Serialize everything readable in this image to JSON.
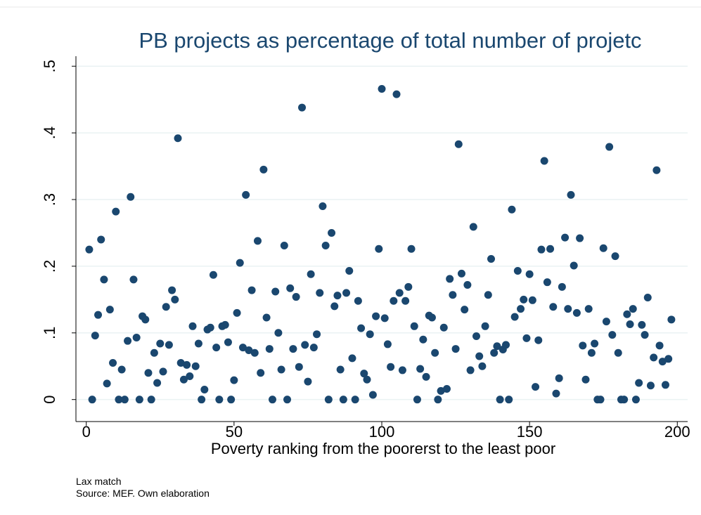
{
  "chart_data": {
    "type": "scatter",
    "title": "PB projects as percentage of total number of projetc",
    "x_label": "Poverty ranking from the poorerst to the least poor",
    "notes": [
      "Lax match",
      "Source: MEF. Own elaboration"
    ],
    "color": "#1a476f",
    "grid": true,
    "xlim": [
      -3.5,
      203.5
    ],
    "xticks": [
      0,
      50,
      100,
      150,
      200
    ],
    "ylim": [
      -0.033,
      0.515
    ],
    "yticks": [
      0,
      {
        "value": 0.1,
        "label": ".1"
      },
      {
        "value": 0.2,
        "label": ".2"
      },
      {
        "value": 0.3,
        "label": ".3"
      },
      {
        "value": 0.4,
        "label": ".4"
      },
      {
        "value": 0.5,
        "label": ".5"
      }
    ],
    "x": [
      1,
      2,
      3,
      4,
      5,
      6,
      7,
      8,
      9,
      10,
      11,
      12,
      13,
      14,
      15,
      16,
      17,
      18,
      19,
      20,
      21,
      22,
      23,
      24,
      25,
      26,
      27,
      28,
      29,
      30,
      31,
      32,
      33,
      34,
      35,
      36,
      37,
      38,
      39,
      40,
      41,
      42,
      43,
      44,
      45,
      46,
      47,
      48,
      49,
      50,
      51,
      52,
      53,
      54,
      55,
      56,
      57,
      58,
      59,
      60,
      61,
      62,
      63,
      64,
      65,
      66,
      67,
      68,
      69,
      70,
      71,
      72,
      73,
      74,
      75,
      76,
      77,
      78,
      79,
      80,
      81,
      82,
      83,
      84,
      85,
      86,
      87,
      88,
      89,
      90,
      91,
      92,
      93,
      94,
      95,
      96,
      97,
      98,
      99,
      100,
      101,
      102,
      103,
      104,
      105,
      106,
      107,
      108,
      109,
      110,
      111,
      112,
      113,
      114,
      115,
      116,
      117,
      118,
      119,
      120,
      121,
      122,
      123,
      124,
      125,
      126,
      127,
      128,
      129,
      130,
      131,
      132,
      133,
      134,
      135,
      136,
      137,
      138,
      139,
      140,
      141,
      142,
      143,
      144,
      145,
      146,
      147,
      148,
      149,
      150,
      151,
      152,
      153,
      154,
      155,
      156,
      157,
      158,
      159,
      160,
      161,
      162,
      163,
      164,
      165,
      166,
      167,
      168,
      169,
      170,
      171,
      172,
      173,
      174,
      175,
      176,
      177,
      178,
      179,
      180,
      181,
      182,
      183,
      184,
      185,
      186,
      187,
      188,
      189,
      190,
      191,
      192,
      193,
      194,
      195,
      196,
      197,
      198
    ],
    "values": [
      0.225,
      0,
      0.096,
      0.127,
      0.24,
      0.18,
      0.024,
      0.135,
      0.055,
      0.282,
      0,
      0.045,
      0,
      0.088,
      0.304,
      0.18,
      0.093,
      0,
      0.125,
      0.12,
      0.04,
      0,
      0.07,
      0.025,
      0.084,
      0.042,
      0.139,
      0.082,
      0.164,
      0.15,
      0.392,
      0.055,
      0.03,
      0.052,
      0.035,
      0.11,
      0.05,
      0.084,
      0,
      0.015,
      0.105,
      0.108,
      0.187,
      0.078,
      0,
      0.11,
      0.112,
      0.086,
      0,
      0.029,
      0.13,
      0.205,
      0.078,
      0.307,
      0.074,
      0.164,
      0.07,
      0.238,
      0.04,
      0.345,
      0.123,
      0.076,
      0,
      0.162,
      0.1,
      0.045,
      0.231,
      0,
      0.167,
      0.076,
      0.154,
      0.049,
      0.438,
      0.082,
      0.027,
      0.188,
      0.078,
      0.098,
      0.16,
      0.29,
      0.231,
      0,
      0.25,
      0.14,
      0.156,
      0.045,
      0,
      0.16,
      0.193,
      0.062,
      0,
      0.148,
      0.107,
      0.039,
      0.03,
      0.098,
      0.007,
      0.125,
      0.226,
      0.466,
      0.122,
      0.083,
      0.049,
      0.148,
      0.458,
      0.16,
      0.044,
      0.148,
      0.169,
      0.226,
      0.11,
      0,
      0.046,
      0.09,
      0.034,
      0.126,
      0.123,
      0.07,
      0,
      0.013,
      0.108,
      0.016,
      0.181,
      0.157,
      0.076,
      0.383,
      0.189,
      0.135,
      0.172,
      0.044,
      0.259,
      0.095,
      0.065,
      0.05,
      0.11,
      0.157,
      0.211,
      0.07,
      0.08,
      0,
      0.075,
      0.082,
      0,
      0.285,
      0.124,
      0.193,
      0.136,
      0.15,
      0.092,
      0.188,
      0.149,
      0.019,
      0.089,
      0.225,
      0.358,
      0.176,
      0.226,
      0.139,
      0.009,
      0.032,
      0.169,
      0.243,
      0.136,
      0.307,
      0.201,
      0.13,
      0.242,
      0.081,
      0.03,
      0.136,
      0.07,
      0.084,
      0,
      0,
      0.227,
      0.117,
      0.379,
      0.097,
      0.215,
      0.07,
      0,
      0,
      0.128,
      0.113,
      0.136,
      0,
      0.025,
      0.112,
      0.097,
      0.153,
      0.021,
      0.063,
      0.344,
      0.081,
      0.057,
      0.022,
      0.061,
      0.12
    ]
  }
}
